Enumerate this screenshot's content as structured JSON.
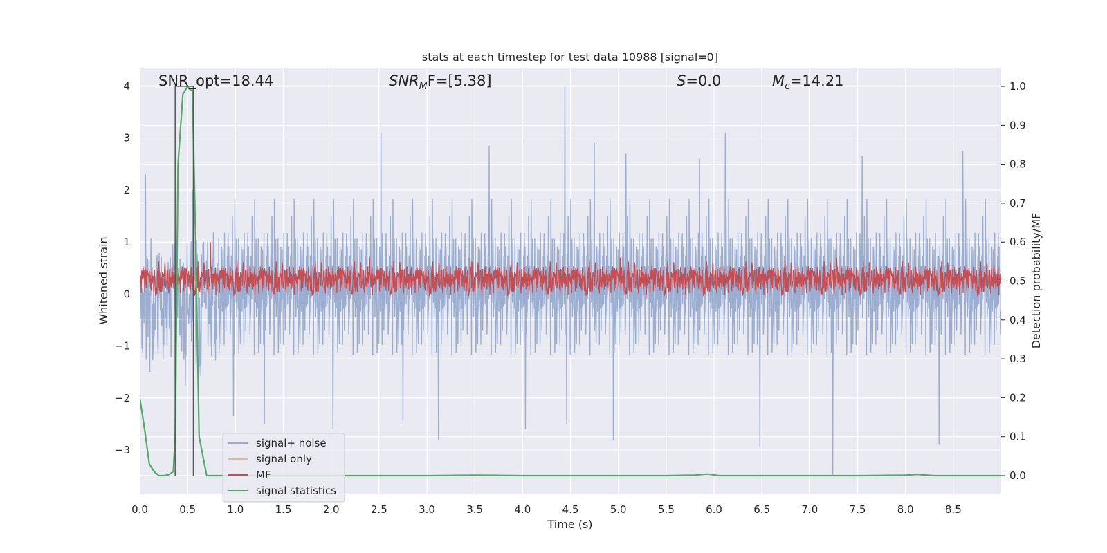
{
  "chart_data": {
    "type": "line",
    "title": "stats at each timestep for test data 10988 [signal=0]",
    "xlabel": "Time (s)",
    "ylabel": "Whitened strain",
    "ylabel_right": "Detection probability/MF",
    "xlim": [
      0.0,
      9.0
    ],
    "ylim": [
      -3.85,
      4.35
    ],
    "ylim_right": [
      -0.048,
      1.048
    ],
    "x_ticks": [
      0.0,
      0.5,
      1.0,
      1.5,
      2.0,
      2.5,
      3.0,
      3.5,
      4.0,
      4.5,
      5.0,
      5.5,
      6.0,
      6.5,
      7.0,
      7.5,
      8.0,
      8.5
    ],
    "x_tick_labels": [
      "0.0",
      "0.5",
      "1.0",
      "1.5",
      "2.0",
      "2.5",
      "3.0",
      "3.5",
      "4.0",
      "4.5",
      "5.0",
      "5.5",
      "6.0",
      "6.5",
      "7.0",
      "7.5",
      "8.0",
      "8.5"
    ],
    "y_ticks": [
      4,
      3,
      2,
      1,
      0,
      -1,
      -2,
      -3
    ],
    "y_tick_labels": [
      "4",
      "3",
      "2",
      "1",
      "0",
      "−1",
      "−2",
      "−3"
    ],
    "y_right_ticks": [
      1.0,
      0.9,
      0.8,
      0.7,
      0.6,
      0.5,
      0.4,
      0.3,
      0.2,
      0.1,
      0.0
    ],
    "y_right_tick_labels": [
      "1.0",
      "0.9",
      "0.8",
      "0.7",
      "0.6",
      "0.5",
      "0.4",
      "0.3",
      "0.2",
      "0.1",
      "0.0"
    ],
    "grid": true,
    "legend_position": "lower-left",
    "annotations": {
      "snr_opt": "SNR_opt=18.44",
      "snr_mf_italic": "SNR",
      "snr_mf_sub": "M",
      "snr_mf_rest": "F=[5.38]",
      "s_italic": "S",
      "s_rest": "=0.0",
      "mc_italic": "M",
      "mc_sub": "c",
      "mc_rest": "=14.21"
    },
    "markers_x": [
      0.37,
      0.56
    ],
    "series": [
      {
        "name": "signal+ noise",
        "color": "#4c72b0",
        "axis": "left",
        "noise_envelope": {
          "typical_amp": 1.2,
          "peak_max": 4.0,
          "peak_min": -3.5
        },
        "peaks": [
          [
            0.06,
            2.3
          ],
          [
            0.38,
            -2.4
          ],
          [
            0.55,
            2.0
          ],
          [
            0.98,
            -2.35
          ],
          [
            1.3,
            -2.5
          ],
          [
            2.02,
            -2.6
          ],
          [
            2.52,
            3.1
          ],
          [
            2.75,
            -2.45
          ],
          [
            3.12,
            -2.8
          ],
          [
            3.65,
            2.85
          ],
          [
            4.03,
            -2.6
          ],
          [
            4.44,
            4.0
          ],
          [
            4.46,
            -2.5
          ],
          [
            4.75,
            2.9
          ],
          [
            4.95,
            -2.8
          ],
          [
            5.08,
            2.7
          ],
          [
            5.85,
            2.6
          ],
          [
            6.12,
            3.1
          ],
          [
            6.48,
            -2.95
          ],
          [
            7.24,
            -3.5
          ],
          [
            7.55,
            2.65
          ],
          [
            8.35,
            -2.9
          ],
          [
            8.6,
            2.75
          ]
        ]
      },
      {
        "name": "signal only",
        "color": "#dd8452",
        "axis": "left",
        "x": [],
        "y": []
      },
      {
        "name": "MF",
        "color": "#c44e52",
        "axis": "right",
        "band": {
          "low": 0.47,
          "mean": 0.5,
          "high": 0.54
        },
        "peaks": [
          [
            0.74,
            0.6
          ],
          [
            2.4,
            0.56
          ],
          [
            3.45,
            0.56
          ],
          [
            5.02,
            0.56
          ],
          [
            7.28,
            0.56
          ]
        ]
      },
      {
        "name": "signal statistics",
        "color": "#55a868",
        "axis": "right",
        "x": [
          0.0,
          0.05,
          0.1,
          0.15,
          0.2,
          0.25,
          0.3,
          0.35,
          0.37,
          0.4,
          0.45,
          0.5,
          0.53,
          0.55,
          0.58,
          0.62,
          0.7,
          0.8,
          1.0,
          2.0,
          3.0,
          3.5,
          4.0,
          5.0,
          5.5,
          5.8,
          5.93,
          6.05,
          6.5,
          7.0,
          7.5,
          8.0,
          8.12,
          8.3,
          8.5,
          9.0
        ],
        "y": [
          0.2,
          0.12,
          0.03,
          0.01,
          0.0,
          0.0,
          0.002,
          0.01,
          0.1,
          0.8,
          0.98,
          1.0,
          0.99,
          0.99,
          0.65,
          0.1,
          0.0,
          0.0,
          0.0,
          0.0,
          0.0,
          0.001,
          0.0,
          0.0,
          0.0,
          0.001,
          0.004,
          0.0,
          0.0,
          0.0,
          0.0,
          0.001,
          0.003,
          0.0,
          0.0,
          0.0
        ]
      }
    ]
  }
}
